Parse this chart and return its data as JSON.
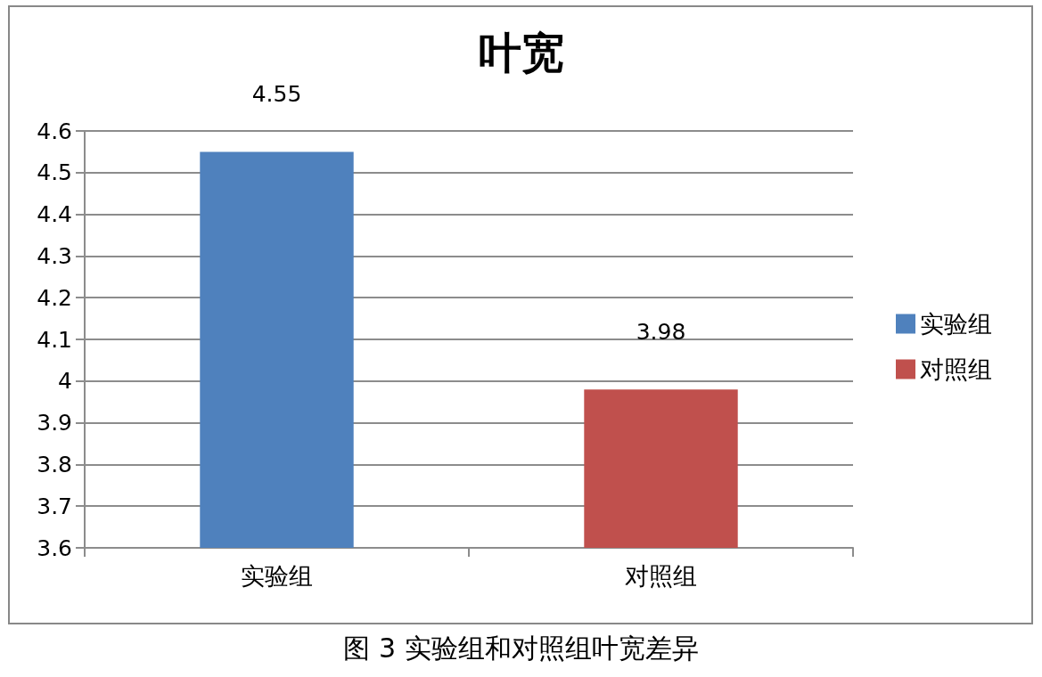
{
  "chart_data": {
    "type": "bar",
    "title": "叶宽",
    "categories": [
      "实验组",
      "对照组"
    ],
    "series": [
      {
        "name": "实验组",
        "color": "#4f81bd",
        "values": [
          4.55,
          null
        ]
      },
      {
        "name": "对照组",
        "color": "#c0504d",
        "values": [
          null,
          3.98
        ]
      }
    ],
    "ylim": [
      3.6,
      4.6
    ],
    "yticks": [
      3.6,
      3.7,
      3.8,
      3.9,
      4,
      4.1,
      4.2,
      4.3,
      4.4,
      4.5,
      4.6
    ],
    "grid": "y",
    "legend": "right",
    "data_labels": true,
    "annotations": [
      "图 3 实验组和对照组叶宽差异"
    ]
  }
}
